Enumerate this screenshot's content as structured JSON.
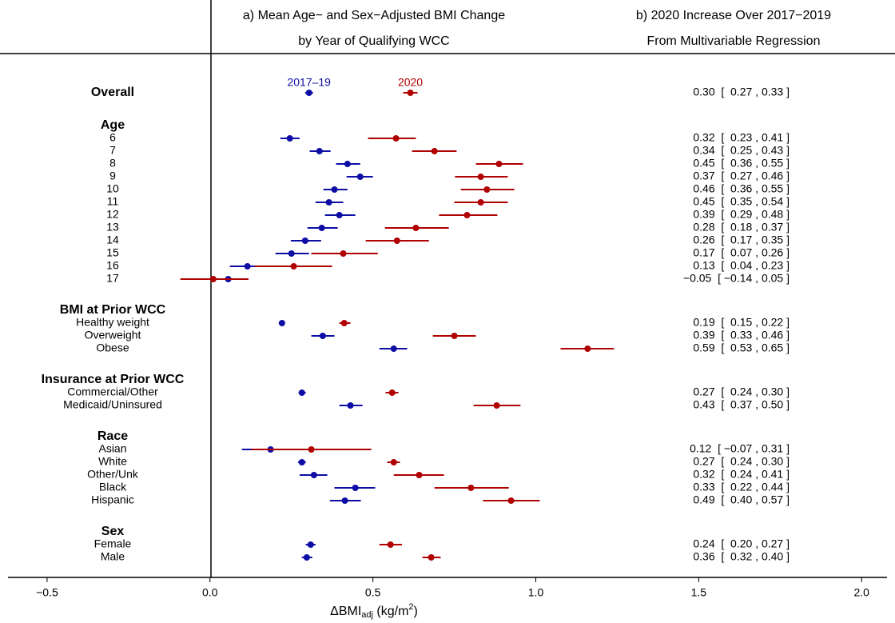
{
  "chart_data": {
    "type": "forest",
    "title_a": [
      "a) Mean Age− and Sex−Adjusted BMI Change",
      "by Year of Qualifying WCC"
    ],
    "title_b": [
      "b) 2020 Increase Over 2017−2019",
      "From Multivariable Regression"
    ],
    "x_label": [
      "ΔBMI",
      "adj",
      " (kg/m",
      "2",
      ")"
    ],
    "xlim": [
      -0.62,
      2.1
    ],
    "xticks": [
      {
        "value": -0.5,
        "label": "−0.5"
      },
      {
        "value": 0,
        "label": "0.0"
      },
      {
        "value": 0.5,
        "label": "0.5"
      },
      {
        "value": 1,
        "label": "1.0"
      },
      {
        "value": 1.5,
        "label": "1.5"
      },
      {
        "value": 2,
        "label": "2.0"
      }
    ],
    "groups": [
      {
        "name": "Overall",
        "categories": []
      },
      {
        "name": "Age",
        "categories": [
          "6",
          "7",
          "8",
          "9",
          "10",
          "11",
          "12",
          "13",
          "14",
          "15",
          "16",
          "17"
        ]
      },
      {
        "name": "BMI at Prior WCC",
        "categories": [
          "Healthy weight",
          "Overweight",
          "Obese"
        ]
      },
      {
        "name": "Insurance at Prior WCC",
        "categories": [
          "Commercial/Other",
          "Medicaid/Uninsured"
        ]
      },
      {
        "name": "Race",
        "categories": [
          "Asian",
          "White",
          "Other/Unk",
          "Black",
          "Hispanic"
        ]
      },
      {
        "name": "Sex",
        "categories": [
          "Female",
          "Male"
        ]
      }
    ],
    "series": [
      {
        "name": "2017–19",
        "color": "#0d0da6",
        "values": [
          0.304,
          0.245,
          0.336,
          0.422,
          0.461,
          0.382,
          0.365,
          0.397,
          0.343,
          0.292,
          0.25,
          0.115,
          0.056,
          0.221,
          0.346,
          0.564,
          0.282,
          0.431,
          0.186,
          0.282,
          0.319,
          0.446,
          0.414,
          0.309,
          0.297
        ],
        "lower": [
          0.292,
          0.216,
          0.306,
          0.387,
          0.419,
          0.348,
          0.324,
          0.353,
          0.299,
          0.248,
          0.201,
          0.061,
          0.0,
          0.211,
          0.311,
          0.52,
          0.272,
          0.397,
          0.098,
          0.27,
          0.275,
          0.382,
          0.368,
          0.294,
          0.282
        ],
        "upper": [
          0.316,
          0.275,
          0.37,
          0.461,
          0.5,
          0.422,
          0.409,
          0.446,
          0.392,
          0.341,
          0.304,
          0.167,
          0.118,
          0.23,
          0.382,
          0.605,
          0.294,
          0.468,
          0.275,
          0.294,
          0.36,
          0.507,
          0.463,
          0.324,
          0.314
        ]
      },
      {
        "name": "2020",
        "color": "#b00000",
        "values": [
          0.615,
          0.571,
          0.689,
          0.887,
          0.831,
          0.85,
          0.831,
          0.789,
          0.632,
          0.574,
          0.409,
          0.257,
          0.01,
          0.412,
          0.75,
          1.159,
          0.559,
          0.88,
          0.311,
          0.564,
          0.642,
          0.801,
          0.924,
          0.554,
          0.679
        ],
        "lower": [
          0.593,
          0.485,
          0.62,
          0.816,
          0.752,
          0.77,
          0.75,
          0.703,
          0.537,
          0.478,
          0.311,
          0.137,
          -0.091,
          0.397,
          0.684,
          1.076,
          0.539,
          0.809,
          0.127,
          0.544,
          0.564,
          0.689,
          0.838,
          0.52,
          0.652
        ],
        "upper": [
          0.637,
          0.632,
          0.757,
          0.961,
          0.914,
          0.934,
          0.914,
          0.882,
          0.733,
          0.672,
          0.515,
          0.375,
          0.118,
          0.431,
          0.816,
          1.24,
          0.578,
          0.953,
          0.495,
          0.583,
          0.718,
          0.917,
          1.012,
          0.589,
          0.708
        ]
      }
    ],
    "regression": [
      "0.30  [  0.27 , 0.33 ]",
      "0.32  [  0.23 , 0.41 ]",
      "0.34  [  0.25 , 0.43 ]",
      "0.45  [  0.36 , 0.55 ]",
      "0.37  [  0.27 , 0.46 ]",
      "0.46  [  0.36 , 0.55 ]",
      "0.45  [  0.35 , 0.54 ]",
      "0.39  [  0.29 , 0.48 ]",
      "0.28  [  0.18 , 0.37 ]",
      "0.26  [  0.17 , 0.35 ]",
      "0.17  [  0.07 , 0.26 ]",
      "0.13  [  0.04 , 0.23 ]",
      "−0.05  [ −0.14 , 0.05 ]",
      "0.19  [  0.15 , 0.22 ]",
      "0.39  [  0.33 , 0.46 ]",
      "0.59  [  0.53 , 0.65 ]",
      "0.27  [  0.24 , 0.30 ]",
      "0.43  [  0.37 , 0.50 ]",
      "0.12  [ −0.07 , 0.31 ]",
      "0.27  [  0.24 , 0.30 ]",
      "0.32  [  0.24 , 0.41 ]",
      "0.33  [  0.22 , 0.44 ]",
      "0.49  [  0.40 , 0.57 ]",
      "0.24  [  0.20 , 0.27 ]",
      "0.36  [  0.32 , 0.40 ]"
    ]
  }
}
